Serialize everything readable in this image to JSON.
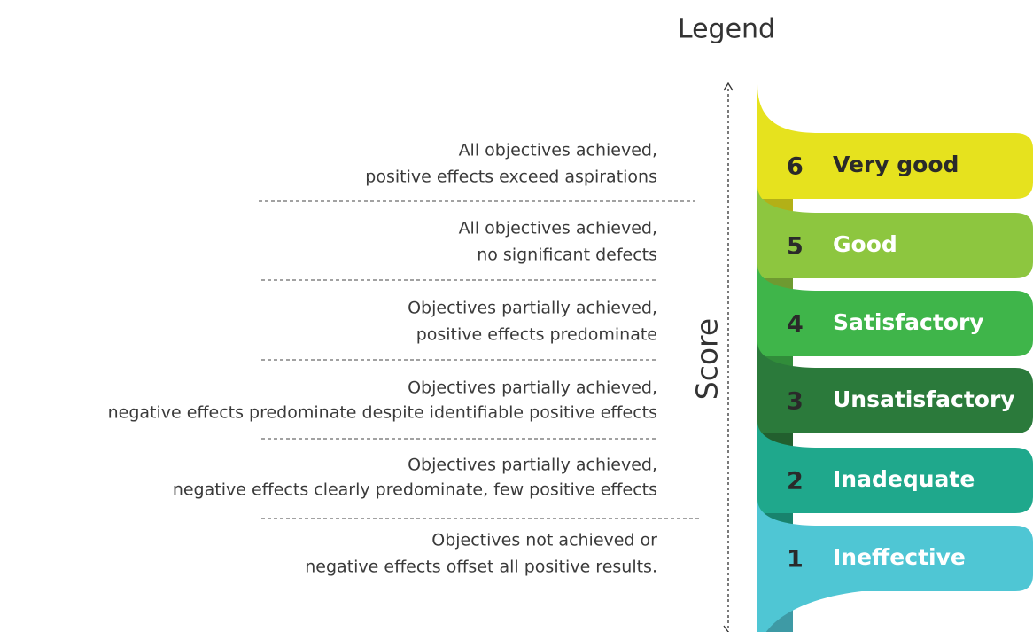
{
  "title": "Legend",
  "axis_label": "Score",
  "levels": [
    {
      "score": "6",
      "label": "Very good",
      "color": "#e6e21e",
      "label_color": "#2a2a2a",
      "description": [
        "All objectives achieved,",
        "positive effects exceed aspirations"
      ]
    },
    {
      "score": "5",
      "label": "Good",
      "color": "#8dc63f",
      "label_color": "#ffffff",
      "description": [
        "All objectives achieved,",
        "no significant defects"
      ]
    },
    {
      "score": "4",
      "label": "Satisfactory",
      "color": "#3fb54a",
      "label_color": "#ffffff",
      "description": [
        "Objectives partially achieved,",
        "positive effects predominate"
      ]
    },
    {
      "score": "3",
      "label": "Unsatisfactory",
      "color": "#2b7a3b",
      "label_color": "#ffffff",
      "description": [
        "Objectives partially achieved,",
        "negative effects predominate despite identifiable positive effects"
      ]
    },
    {
      "score": "2",
      "label": "Inadequate",
      "color": "#1fa88c",
      "label_color": "#ffffff",
      "description": [
        "Objectives partially achieved,",
        "negative effects clearly predominate, few positive effects"
      ]
    },
    {
      "score": "1",
      "label": "Ineffective",
      "color": "#4fc6d4",
      "label_color": "#ffffff",
      "description": [
        "Objectives not achieved or",
        "negative effects offset all positive results."
      ]
    }
  ]
}
